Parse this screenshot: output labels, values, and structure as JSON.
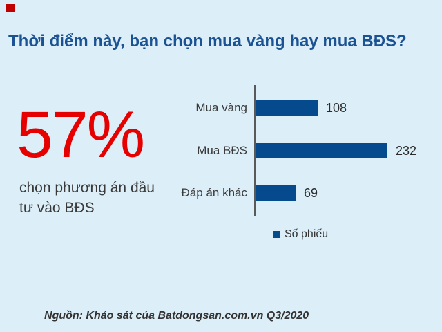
{
  "page": {
    "background_color": "#dceef7"
  },
  "decor": {
    "corner_square_color": "#c00000"
  },
  "title": {
    "text": "Thời điểm này, bạn chọn mua vàng hay mua BĐS?",
    "color": "#1a5293"
  },
  "highlight": {
    "value": "57%",
    "value_color": "#e60000",
    "description_line1": "chọn phương án đầu",
    "description_line2": "tư vào BĐS"
  },
  "chart_data": {
    "type": "bar",
    "orientation": "horizontal",
    "title": "",
    "categories": [
      "Mua vàng",
      "Mua BĐS",
      "Đáp án khác"
    ],
    "values": [
      108,
      232,
      69
    ],
    "series_name": "Số phiếu",
    "bar_color": "#064a8e",
    "xlim": [
      0,
      240
    ],
    "grid": false,
    "value_labels": true,
    "legend_position": "bottom"
  },
  "source": {
    "text": "Nguồn: Khảo sát của Batdongsan.com.vn Q3/2020"
  }
}
